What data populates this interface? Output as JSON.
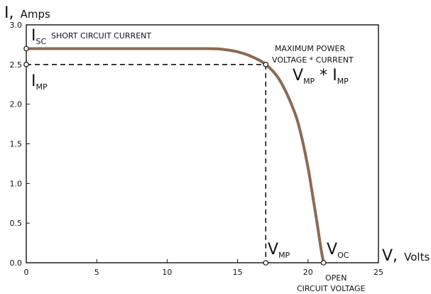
{
  "chart_data": {
    "type": "line",
    "title": "",
    "xlabel": {
      "symbol": "V,",
      "unit": "Volts"
    },
    "ylabel": {
      "symbol": "I,",
      "unit": "Amps"
    },
    "xlim": [
      0,
      25
    ],
    "ylim": [
      0,
      3.0
    ],
    "xticks": [
      "0",
      "5",
      "10",
      "15",
      "20",
      "25"
    ],
    "yticks": [
      "0.0",
      "0.5",
      "1.0",
      "1.5",
      "2.0",
      "2.5",
      "3.0"
    ],
    "grid": false,
    "series": [
      {
        "color": "#8b6a55",
        "x": [
          0,
          5,
          10,
          13,
          14,
          15,
          16,
          17,
          18,
          19,
          19.5,
          20,
          20.3,
          20.6,
          20.9,
          21.1
        ],
        "y": [
          2.7,
          2.7,
          2.7,
          2.7,
          2.69,
          2.66,
          2.6,
          2.5,
          2.3,
          1.92,
          1.62,
          1.2,
          0.88,
          0.55,
          0.2,
          0.0
        ]
      }
    ],
    "mpp": {
      "v": 17,
      "i": 2.5
    },
    "isc": 2.7,
    "voc": 21.1,
    "annotations": {
      "isc_symbol": "I",
      "isc_sub": "SC",
      "isc_text": "SHORT CIRCUIT  CURRENT",
      "imp_symbol": "I",
      "imp_sub": "MP",
      "max_power_line1": "MAXIMUM POWER",
      "max_power_line2": "VOLTAGE * CURRENT",
      "vmp_imp_v": "V",
      "vmp_imp_v_sub": "MP",
      "vmp_imp_op": " * ",
      "vmp_imp_i": "I",
      "vmp_imp_i_sub": "MP",
      "vmp_symbol": "V",
      "vmp_sub": "MP",
      "voc_symbol": "V",
      "voc_sub": "OC",
      "open_circuit_line1": "OPEN",
      "open_circuit_line2": "CIRCUIT  VOLTAGE"
    }
  }
}
